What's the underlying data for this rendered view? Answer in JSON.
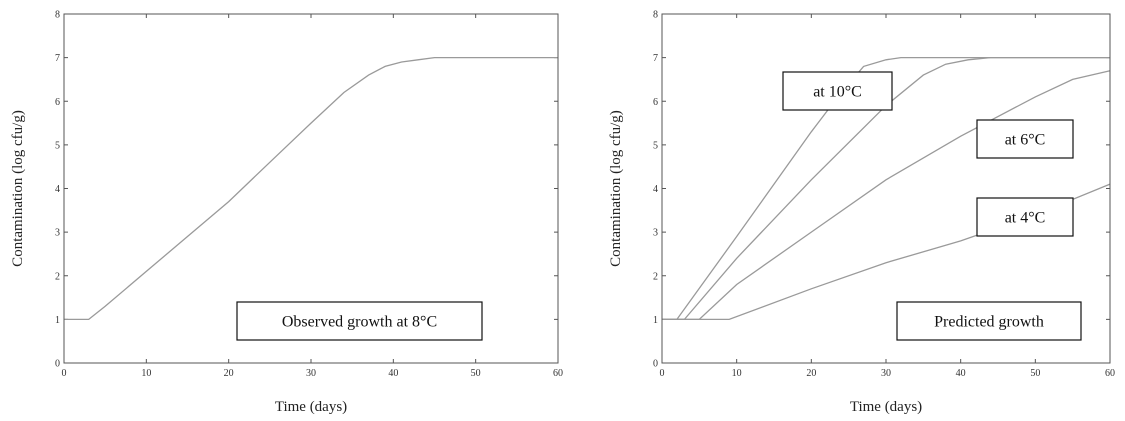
{
  "chart_data": [
    {
      "type": "line",
      "xlabel": "Time (days)",
      "ylabel": "Contamination (log cfu/g)",
      "xlim": [
        0,
        60
      ],
      "ylim": [
        0,
        8
      ],
      "xticks": [
        "0",
        "10",
        "20",
        "30",
        "40",
        "50",
        "60"
      ],
      "yticks": [
        "0",
        "1",
        "2",
        "3",
        "4",
        "5",
        "6",
        "7",
        "8"
      ],
      "grid": false,
      "series": [
        {
          "x": [
            0,
            3,
            5,
            10,
            15,
            20,
            25,
            30,
            34,
            37,
            39,
            41,
            43,
            45,
            50,
            60
          ],
          "y": [
            1.0,
            1.0,
            1.3,
            2.1,
            2.9,
            3.7,
            4.6,
            5.5,
            6.2,
            6.6,
            6.8,
            6.9,
            6.95,
            7.0,
            7.0,
            7.0
          ]
        }
      ],
      "annotations": [
        {
          "text": "Observed growth at 8°C",
          "position": "bottom-right"
        }
      ]
    },
    {
      "type": "line",
      "xlabel": "Time (days)",
      "ylabel": "Contamination (log cfu/g)",
      "xlim": [
        0,
        60
      ],
      "ylim": [
        0,
        8
      ],
      "xticks": [
        "0",
        "10",
        "20",
        "30",
        "40",
        "50",
        "60"
      ],
      "yticks": [
        "0",
        "1",
        "2",
        "3",
        "4",
        "5",
        "6",
        "7",
        "8"
      ],
      "grid": false,
      "series": [
        {
          "x": [
            0,
            2,
            10,
            20,
            24,
            27,
            30,
            32,
            35,
            60
          ],
          "y": [
            1.0,
            1.0,
            2.9,
            5.3,
            6.2,
            6.8,
            6.95,
            7.0,
            7.0,
            7.0
          ]
        },
        {
          "x": [
            0,
            3,
            10,
            20,
            30,
            35,
            38,
            41,
            44,
            47,
            60
          ],
          "y": [
            1.0,
            1.0,
            2.4,
            4.2,
            5.9,
            6.6,
            6.85,
            6.95,
            7.0,
            7.0,
            7.0
          ]
        },
        {
          "x": [
            0,
            5,
            10,
            20,
            30,
            40,
            50,
            55,
            60
          ],
          "y": [
            1.0,
            1.0,
            1.8,
            3.0,
            4.2,
            5.2,
            6.1,
            6.5,
            6.7
          ]
        },
        {
          "x": [
            0,
            9,
            20,
            30,
            40,
            50,
            60
          ],
          "y": [
            1.0,
            1.0,
            1.7,
            2.3,
            2.8,
            3.4,
            4.1
          ]
        }
      ],
      "annotations": [
        {
          "text": "at 10°C"
        },
        {
          "text": "at 6°C"
        },
        {
          "text": "at 4°C"
        },
        {
          "text": "Predicted growth",
          "position": "bottom-right"
        }
      ]
    }
  ]
}
